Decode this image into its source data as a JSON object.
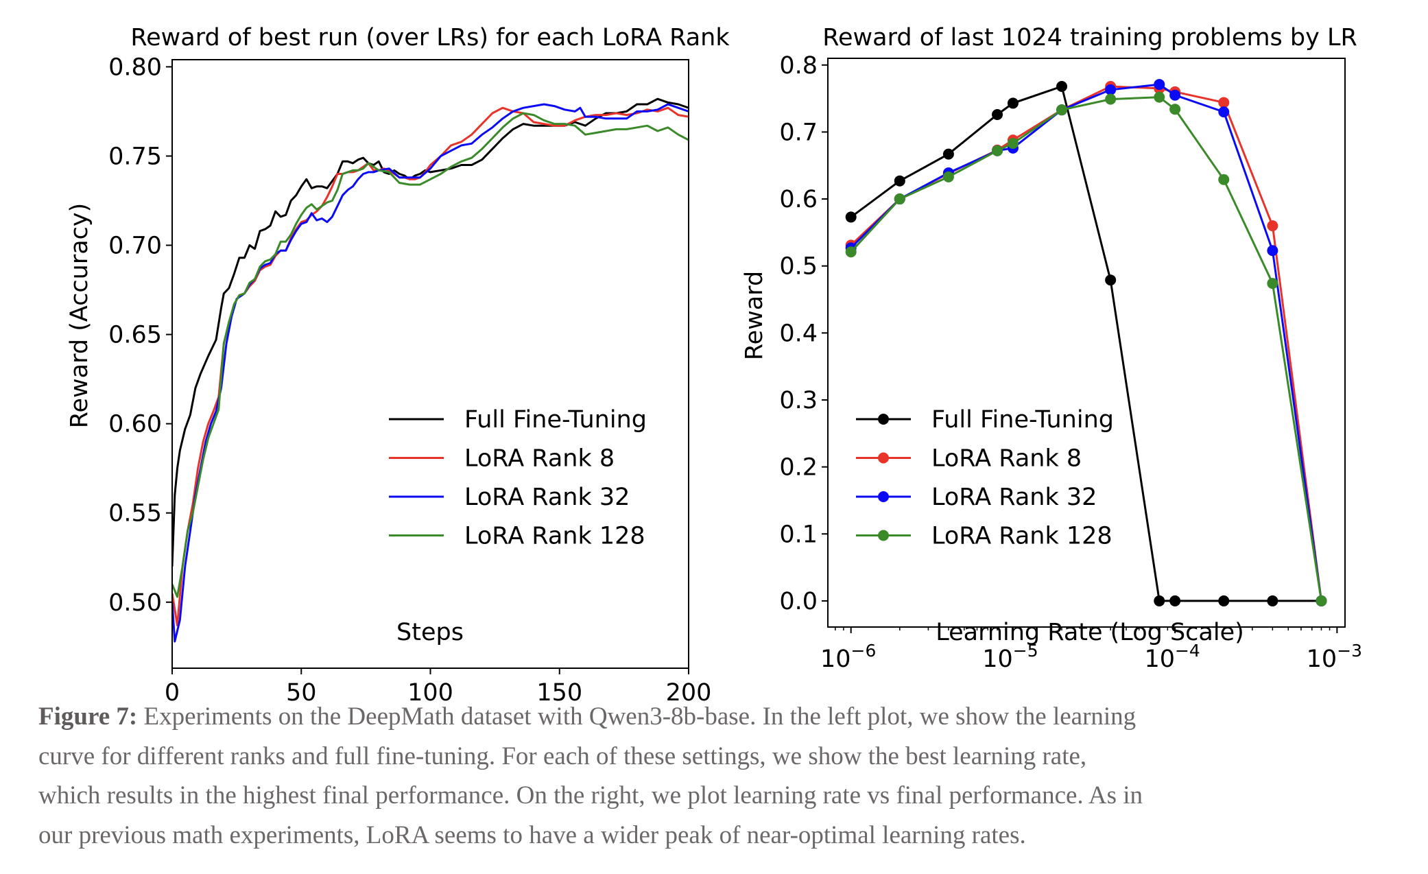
{
  "chart_data": [
    {
      "type": "line",
      "title": "Reward of best run (over LRs) for each LoRA Rank",
      "xlabel": "Steps",
      "ylabel": "Reward (Accuracy)",
      "xlim": [
        0,
        200
      ],
      "ylim": [
        0.463,
        0.804
      ],
      "xticks": [
        "0",
        "50",
        "100",
        "150",
        "200"
      ],
      "yticks": [
        "0.50",
        "0.55",
        "0.60",
        "0.65",
        "0.70",
        "0.75",
        "0.80"
      ],
      "grid": false,
      "legend_position": "lower-right",
      "series": [
        {
          "name": "Full Fine-Tuning",
          "color": "#000000",
          "x": [
            0,
            1,
            2,
            3,
            5,
            7,
            9,
            11,
            14,
            17,
            19,
            20,
            22,
            24,
            26,
            28,
            30,
            32,
            34,
            36,
            38,
            40,
            42,
            44,
            46,
            48,
            50,
            52,
            54,
            56,
            58,
            60,
            62,
            64,
            66,
            68,
            70,
            72,
            74,
            76,
            78,
            80,
            82,
            84,
            86,
            88,
            90,
            92,
            94,
            96,
            98,
            100,
            104,
            108,
            112,
            116,
            120,
            124,
            128,
            132,
            136,
            140,
            144,
            148,
            152,
            156,
            160,
            164,
            168,
            172,
            176,
            180,
            184,
            188,
            192,
            196,
            200
          ],
          "y": [
            0.52,
            0.56,
            0.575,
            0.585,
            0.597,
            0.605,
            0.62,
            0.628,
            0.638,
            0.647,
            0.665,
            0.673,
            0.676,
            0.684,
            0.693,
            0.693,
            0.7,
            0.698,
            0.708,
            0.709,
            0.711,
            0.719,
            0.716,
            0.717,
            0.725,
            0.728,
            0.733,
            0.737,
            0.732,
            0.733,
            0.733,
            0.732,
            0.736,
            0.74,
            0.747,
            0.747,
            0.746,
            0.748,
            0.749,
            0.746,
            0.745,
            0.747,
            0.741,
            0.74,
            0.742,
            0.74,
            0.739,
            0.737,
            0.739,
            0.74,
            0.742,
            0.741,
            0.742,
            0.743,
            0.745,
            0.745,
            0.748,
            0.754,
            0.76,
            0.765,
            0.768,
            0.767,
            0.767,
            0.767,
            0.767,
            0.769,
            0.767,
            0.771,
            0.774,
            0.774,
            0.775,
            0.779,
            0.779,
            0.782,
            0.78,
            0.779,
            0.777
          ]
        },
        {
          "name": "LoRA Rank 8",
          "color": "#e8332a",
          "x": [
            0,
            2,
            4,
            6,
            8,
            10,
            12,
            14,
            16,
            18,
            20,
            22,
            24,
            26,
            28,
            30,
            32,
            34,
            36,
            38,
            40,
            42,
            44,
            46,
            48,
            50,
            52,
            54,
            56,
            58,
            60,
            62,
            64,
            66,
            68,
            70,
            72,
            74,
            76,
            78,
            80,
            82,
            84,
            86,
            88,
            90,
            92,
            94,
            96,
            98,
            100,
            104,
            108,
            112,
            116,
            120,
            124,
            128,
            132,
            136,
            140,
            144,
            148,
            152,
            156,
            160,
            164,
            168,
            172,
            176,
            180,
            184,
            188,
            192,
            196,
            200
          ],
          "y": [
            0.505,
            0.487,
            0.52,
            0.54,
            0.555,
            0.575,
            0.59,
            0.6,
            0.607,
            0.615,
            0.645,
            0.656,
            0.667,
            0.672,
            0.673,
            0.677,
            0.68,
            0.686,
            0.688,
            0.689,
            0.694,
            0.697,
            0.697,
            0.704,
            0.709,
            0.713,
            0.714,
            0.717,
            0.719,
            0.722,
            0.727,
            0.733,
            0.74,
            0.74,
            0.741,
            0.741,
            0.742,
            0.744,
            0.746,
            0.742,
            0.742,
            0.743,
            0.742,
            0.74,
            0.738,
            0.738,
            0.737,
            0.737,
            0.738,
            0.741,
            0.745,
            0.75,
            0.756,
            0.758,
            0.762,
            0.768,
            0.774,
            0.777,
            0.775,
            0.774,
            0.769,
            0.768,
            0.767,
            0.767,
            0.77,
            0.772,
            0.773,
            0.773,
            0.774,
            0.773,
            0.774,
            0.776,
            0.775,
            0.777,
            0.773,
            0.772
          ]
        },
        {
          "name": "LoRA Rank 32",
          "color": "#0a0af5",
          "x": [
            0,
            1,
            3,
            5,
            7,
            9,
            11,
            13,
            15,
            17,
            19,
            21,
            23,
            25,
            28,
            30,
            32,
            34,
            36,
            38,
            40,
            42,
            44,
            46,
            48,
            50,
            52,
            54,
            56,
            58,
            60,
            62,
            64,
            66,
            68,
            70,
            72,
            74,
            76,
            78,
            80,
            84,
            88,
            92,
            96,
            100,
            104,
            108,
            112,
            116,
            120,
            124,
            128,
            132,
            136,
            140,
            144,
            148,
            152,
            156,
            158,
            160,
            164,
            168,
            172,
            176,
            180,
            184,
            188,
            192,
            196,
            200
          ],
          "y": [
            0.5,
            0.478,
            0.49,
            0.52,
            0.54,
            0.56,
            0.575,
            0.59,
            0.6,
            0.607,
            0.62,
            0.645,
            0.66,
            0.67,
            0.673,
            0.678,
            0.681,
            0.687,
            0.689,
            0.69,
            0.695,
            0.697,
            0.697,
            0.703,
            0.708,
            0.712,
            0.713,
            0.718,
            0.714,
            0.715,
            0.713,
            0.716,
            0.722,
            0.728,
            0.731,
            0.733,
            0.737,
            0.74,
            0.741,
            0.741,
            0.742,
            0.743,
            0.738,
            0.738,
            0.738,
            0.743,
            0.75,
            0.753,
            0.756,
            0.757,
            0.762,
            0.766,
            0.771,
            0.775,
            0.777,
            0.778,
            0.779,
            0.778,
            0.776,
            0.775,
            0.777,
            0.772,
            0.772,
            0.771,
            0.771,
            0.771,
            0.775,
            0.775,
            0.776,
            0.779,
            0.777,
            0.775
          ]
        },
        {
          "name": "LoRA Rank 128",
          "color": "#3a8a2a",
          "x": [
            0,
            2,
            4,
            6,
            8,
            10,
            12,
            14,
            16,
            18,
            20,
            22,
            24,
            26,
            28,
            30,
            32,
            34,
            36,
            38,
            40,
            42,
            44,
            46,
            48,
            50,
            52,
            54,
            56,
            58,
            60,
            62,
            64,
            66,
            68,
            70,
            72,
            74,
            76,
            78,
            80,
            84,
            88,
            92,
            96,
            100,
            104,
            108,
            112,
            116,
            120,
            124,
            128,
            132,
            136,
            140,
            144,
            148,
            152,
            156,
            160,
            164,
            168,
            172,
            176,
            180,
            184,
            188,
            192,
            196,
            200
          ],
          "y": [
            0.51,
            0.503,
            0.52,
            0.54,
            0.55,
            0.565,
            0.58,
            0.592,
            0.6,
            0.608,
            0.645,
            0.657,
            0.667,
            0.672,
            0.673,
            0.679,
            0.681,
            0.688,
            0.691,
            0.692,
            0.695,
            0.702,
            0.702,
            0.706,
            0.712,
            0.717,
            0.721,
            0.723,
            0.72,
            0.722,
            0.724,
            0.725,
            0.731,
            0.74,
            0.741,
            0.742,
            0.742,
            0.743,
            0.746,
            0.744,
            0.742,
            0.741,
            0.735,
            0.734,
            0.734,
            0.737,
            0.74,
            0.744,
            0.747,
            0.749,
            0.754,
            0.76,
            0.766,
            0.771,
            0.774,
            0.773,
            0.77,
            0.768,
            0.768,
            0.767,
            0.762,
            0.763,
            0.764,
            0.765,
            0.765,
            0.766,
            0.767,
            0.764,
            0.766,
            0.762,
            0.759
          ]
        }
      ]
    },
    {
      "type": "line",
      "title": "Reward of last 1024 training problems by LR",
      "xlabel": "Learning Rate (Log Scale)",
      "ylabel": "Reward",
      "xscale": "log",
      "xlim": [
        7.2e-07,
        0.00112
      ],
      "ylim": [
        -0.039,
        0.81
      ],
      "xticks": [
        {
          "base": "10",
          "exp": "−6"
        },
        {
          "base": "10",
          "exp": "−5"
        },
        {
          "base": "10",
          "exp": "−4"
        },
        {
          "base": "10",
          "exp": "−3"
        }
      ],
      "yticks": [
        "0.0",
        "0.1",
        "0.2",
        "0.3",
        "0.4",
        "0.5",
        "0.6",
        "0.7",
        "0.8"
      ],
      "grid": false,
      "markers": true,
      "legend_position": "lower-left",
      "x": [
        1e-06,
        2e-06,
        4e-06,
        8e-06,
        1e-05,
        2e-05,
        4e-05,
        8e-05,
        0.0001,
        0.0002,
        0.0004,
        0.0008
      ],
      "series": [
        {
          "name": "Full Fine-Tuning",
          "color": "#000000",
          "values": [
            0.573,
            0.627,
            0.667,
            0.726,
            0.743,
            0.768,
            0.479,
            0.0,
            0.0,
            0.0,
            0.0,
            0.0
          ]
        },
        {
          "name": "LoRA Rank 8",
          "color": "#e8332a",
          "values": [
            0.531,
            0.6,
            0.638,
            0.673,
            0.688,
            0.733,
            0.768,
            0.765,
            0.76,
            0.744,
            0.56,
            0.0
          ]
        },
        {
          "name": "LoRA Rank 32",
          "color": "#0a0af5",
          "values": [
            0.527,
            0.6,
            0.639,
            0.672,
            0.676,
            0.733,
            0.763,
            0.771,
            0.755,
            0.73,
            0.523,
            0.0
          ]
        },
        {
          "name": "LoRA Rank 128",
          "color": "#3a8a2a",
          "values": [
            0.521,
            0.6,
            0.633,
            0.672,
            0.683,
            0.733,
            0.749,
            0.752,
            0.734,
            0.629,
            0.474,
            0.0
          ]
        }
      ]
    }
  ],
  "caption": {
    "label": "Figure 7:",
    "lines": [
      " Experiments on the DeepMath dataset with Qwen3-8b-base. In the left plot, we show the learning",
      "curve for different ranks and full fine-tuning. For each of these settings, we show the best learning rate,",
      "which results in the highest final performance. On the right, we plot learning rate vs final performance. As in",
      "our previous math experiments, LoRA seems to have a wider peak of near-optimal learning rates."
    ]
  }
}
